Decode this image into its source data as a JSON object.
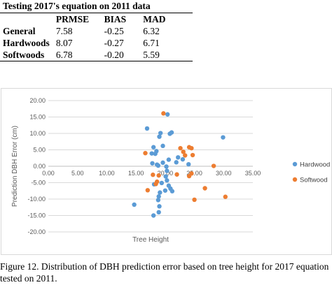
{
  "table": {
    "caption": "Testing 2017's equation on 2011 data",
    "columns": [
      "",
      "PRMSE",
      "BIAS",
      "MAD"
    ],
    "rows": [
      {
        "label": "General",
        "prmse": "7.58",
        "bias": "-0.25",
        "mad": "6.32"
      },
      {
        "label": "Hardwoods",
        "prmse": "8.07",
        "bias": "-0.27",
        "mad": "6.71"
      },
      {
        "label": "Softwoods",
        "prmse": "6.78",
        "bias": "-0.20",
        "mad": "5.59"
      }
    ]
  },
  "chart_data": {
    "type": "scatter",
    "title": "",
    "xlabel": "Tree Height",
    "ylabel": "Prediction DBH Error (cm)",
    "xlim": [
      0,
      35
    ],
    "ylim": [
      -20,
      20
    ],
    "x_ticks": [
      "0.00",
      "5.00",
      "10.00",
      "15.00",
      "20.00",
      "25.00",
      "30.00",
      "35.00"
    ],
    "y_ticks": [
      "20.00",
      "15.00",
      "10.00",
      "5.00",
      "0.00",
      "-5.00",
      "-10.00",
      "-15.00",
      "-20.00"
    ],
    "grid": "horizontal",
    "legend": "right",
    "series": [
      {
        "name": "Hardwood",
        "color": "#5b9bd5",
        "points": [
          [
            16.9,
            11.5
          ],
          [
            14.7,
            -11.7
          ],
          [
            17.7,
            3.9
          ],
          [
            18.0,
            5.8
          ],
          [
            18.3,
            3.8
          ],
          [
            18.5,
            4.6
          ],
          [
            17.8,
            0.9
          ],
          [
            18.6,
            0.5
          ],
          [
            19.0,
            9.0
          ],
          [
            19.2,
            10.1
          ],
          [
            19.6,
            6.2
          ],
          [
            18.8,
            0.2
          ],
          [
            20.4,
            15.8
          ],
          [
            20.8,
            9.9
          ],
          [
            21.1,
            10.3
          ],
          [
            20.6,
            2.0
          ],
          [
            20.2,
            -0.1
          ],
          [
            20.3,
            -1.4
          ],
          [
            20.1,
            -3.1
          ],
          [
            20.3,
            -4.3
          ],
          [
            20.6,
            -5.9
          ],
          [
            20.9,
            -6.8
          ],
          [
            21.2,
            -7.6
          ],
          [
            20.0,
            -7.4
          ],
          [
            19.4,
            -5.1
          ],
          [
            18.1,
            -5.5
          ],
          [
            19.1,
            -8.0
          ],
          [
            18.9,
            -9.2
          ],
          [
            18.8,
            -10.3
          ],
          [
            19.0,
            -12.2
          ],
          [
            18.9,
            -14.0
          ],
          [
            18.0,
            -15.0
          ],
          [
            22.2,
            2.7
          ],
          [
            23.0,
            2.1
          ],
          [
            24.0,
            0.6
          ],
          [
            29.9,
            8.8
          ],
          [
            21.9,
            1.2
          ],
          [
            19.6,
            1.1
          ]
        ]
      },
      {
        "name": "Softwood",
        "color": "#ed7d31",
        "points": [
          [
            19.7,
            16.1
          ],
          [
            16.6,
            4.0
          ],
          [
            17.0,
            -7.3
          ],
          [
            17.9,
            -2.6
          ],
          [
            18.4,
            -5.4
          ],
          [
            18.6,
            -4.7
          ],
          [
            18.9,
            -2.8
          ],
          [
            22.6,
            5.5
          ],
          [
            23.1,
            4.4
          ],
          [
            23.4,
            3.3
          ],
          [
            24.1,
            5.8
          ],
          [
            24.5,
            5.5
          ],
          [
            24.7,
            3.4
          ],
          [
            22.0,
            -2.5
          ],
          [
            24.5,
            -2.2
          ],
          [
            24.1,
            -3.0
          ],
          [
            26.8,
            -6.7
          ],
          [
            28.3,
            0.1
          ],
          [
            30.3,
            -9.3
          ],
          [
            25.0,
            -10.2
          ]
        ]
      }
    ]
  },
  "caption": "Figure 12. Distribution of DBH prediction error based on tree height for 2017 equation tested on 2011."
}
